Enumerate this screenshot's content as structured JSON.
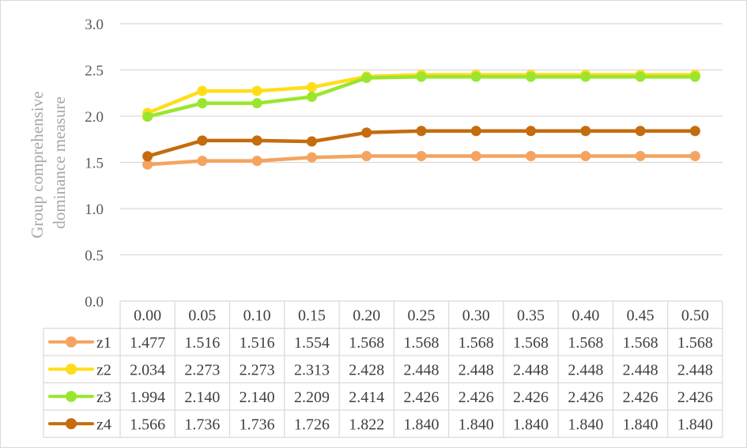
{
  "colors": {
    "z1": "#f4a460",
    "z2": "#ffdd1a",
    "z3": "#9ae62e",
    "z4": "#c46c0e",
    "grid": "#d9d9d9",
    "tick": "#595959",
    "axis_label": "#a6a6a6"
  },
  "chart_data": {
    "type": "line",
    "title": "",
    "xlabel": "",
    "ylabel": "Group comprehensive dominance measure",
    "ylabel_lines": [
      "Group comprehensive",
      "dominance measure"
    ],
    "ylim": [
      0,
      3
    ],
    "yticks": [
      "0.0",
      "0.5",
      "1.0",
      "1.5",
      "2.0",
      "2.5",
      "3.0"
    ],
    "grid": true,
    "legend": "data-table",
    "categories": [
      "0.00",
      "0.05",
      "0.10",
      "0.15",
      "0.20",
      "0.25",
      "0.30",
      "0.35",
      "0.40",
      "0.45",
      "0.50"
    ],
    "series": [
      {
        "name": "z1",
        "color": "#f4a460",
        "values": [
          1.477,
          1.516,
          1.516,
          1.554,
          1.568,
          1.568,
          1.568,
          1.568,
          1.568,
          1.568,
          1.568
        ],
        "labels": [
          "1.477",
          "1.516",
          "1.516",
          "1.554",
          "1.568",
          "1.568",
          "1.568",
          "1.568",
          "1.568",
          "1.568",
          "1.568"
        ]
      },
      {
        "name": "z2",
        "color": "#ffdd1a",
        "values": [
          2.034,
          2.273,
          2.273,
          2.313,
          2.428,
          2.448,
          2.448,
          2.448,
          2.448,
          2.448,
          2.448
        ],
        "labels": [
          "2.034",
          "2.273",
          "2.273",
          "2.313",
          "2.428",
          "2.448",
          "2.448",
          "2.448",
          "2.448",
          "2.448",
          "2.448"
        ]
      },
      {
        "name": "z3",
        "color": "#9ae62e",
        "values": [
          1.994,
          2.14,
          2.14,
          2.209,
          2.414,
          2.426,
          2.426,
          2.426,
          2.426,
          2.426,
          2.426
        ],
        "labels": [
          "1.994",
          "2.140",
          "2.140",
          "2.209",
          "2.414",
          "2.426",
          "2.426",
          "2.426",
          "2.426",
          "2.426",
          "2.426"
        ]
      },
      {
        "name": "z4",
        "color": "#c46c0e",
        "values": [
          1.566,
          1.736,
          1.736,
          1.726,
          1.822,
          1.84,
          1.84,
          1.84,
          1.84,
          1.84,
          1.84
        ],
        "labels": [
          "1.566",
          "1.736",
          "1.736",
          "1.726",
          "1.822",
          "1.840",
          "1.840",
          "1.840",
          "1.840",
          "1.840",
          "1.840"
        ]
      }
    ]
  }
}
